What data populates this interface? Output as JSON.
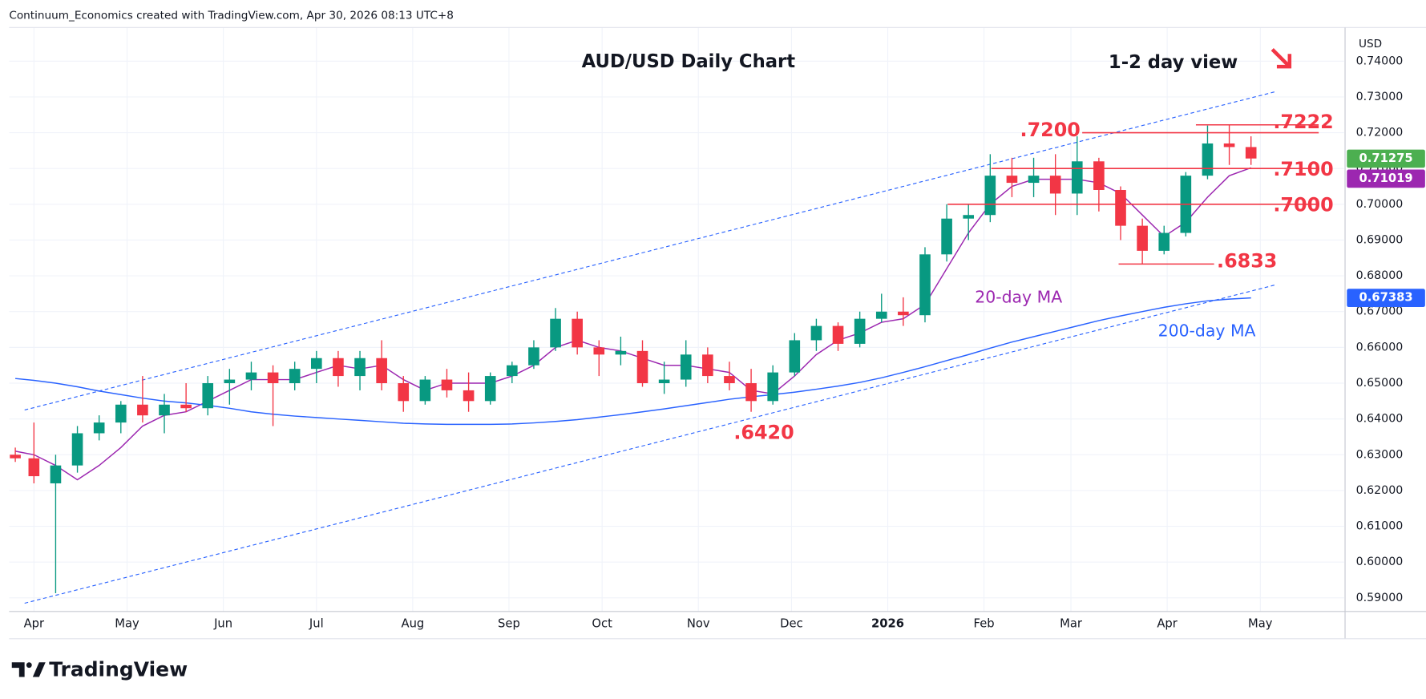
{
  "header": "Continuum_Economics created with TradingView.com, Apr 30, 2026 08:13 UTC+8",
  "footer": "TradingView",
  "chart_data": {
    "type": "candlestick",
    "title": "AUD/USD Daily Chart",
    "subtitle": "1-2 day view",
    "currency": "USD",
    "up_color": "#089981",
    "down_color": "#f23645",
    "grid": true,
    "xlim": [
      -8,
      422
    ],
    "xticks": [
      {
        "value": 0,
        "label": "Apr"
      },
      {
        "value": 30,
        "label": "May"
      },
      {
        "value": 61,
        "label": "Jun"
      },
      {
        "value": 91,
        "label": "Jul"
      },
      {
        "value": 122,
        "label": "Aug"
      },
      {
        "value": 153,
        "label": "Sep"
      },
      {
        "value": 183,
        "label": "Oct"
      },
      {
        "value": 214,
        "label": "Nov"
      },
      {
        "value": 244,
        "label": "Dec"
      },
      {
        "value": 275,
        "label": "2026"
      },
      {
        "value": 306,
        "label": "Feb"
      },
      {
        "value": 334,
        "label": "Mar"
      },
      {
        "value": 365,
        "label": "Apr"
      },
      {
        "value": 395,
        "label": "May"
      }
    ],
    "ylim": [
      0.5862,
      0.7494
    ],
    "yticks": [
      {
        "value": 0.59,
        "label": "0.59000"
      },
      {
        "value": 0.6,
        "label": "0.60000"
      },
      {
        "value": 0.61,
        "label": "0.61000"
      },
      {
        "value": 0.62,
        "label": "0.62000"
      },
      {
        "value": 0.63,
        "label": "0.63000"
      },
      {
        "value": 0.64,
        "label": "0.64000"
      },
      {
        "value": 0.65,
        "label": "0.65000"
      },
      {
        "value": 0.66,
        "label": "0.66000"
      },
      {
        "value": 0.67,
        "label": "0.67000"
      },
      {
        "value": 0.68,
        "label": "0.68000"
      },
      {
        "value": 0.69,
        "label": "0.69000"
      },
      {
        "value": 0.7,
        "label": "0.70000"
      },
      {
        "value": 0.71,
        "label": "0.71000"
      },
      {
        "value": 0.72,
        "label": "0.72000"
      },
      {
        "value": 0.73,
        "label": "0.73000"
      },
      {
        "value": 0.74,
        "label": "0.74000"
      }
    ],
    "x": [
      -6,
      0,
      7,
      14,
      21,
      28,
      35,
      42,
      49,
      56,
      63,
      70,
      77,
      84,
      91,
      98,
      105,
      112,
      119,
      126,
      133,
      140,
      147,
      154,
      161,
      168,
      175,
      182,
      189,
      196,
      203,
      210,
      217,
      224,
      231,
      238,
      245,
      252,
      259,
      266,
      273,
      280,
      287,
      294,
      301,
      308,
      315,
      322,
      329,
      336,
      343,
      350,
      357,
      364,
      371,
      378,
      385,
      392
    ],
    "open": [
      0.63,
      0.629,
      0.622,
      0.627,
      0.636,
      0.639,
      0.644,
      0.641,
      0.644,
      0.643,
      0.65,
      0.651,
      0.653,
      0.65,
      0.654,
      0.657,
      0.652,
      0.657,
      0.65,
      0.645,
      0.651,
      0.648,
      0.645,
      0.652,
      0.655,
      0.66,
      0.668,
      0.66,
      0.658,
      0.659,
      0.65,
      0.651,
      0.658,
      0.652,
      0.65,
      0.645,
      0.653,
      0.662,
      0.666,
      0.661,
      0.668,
      0.67,
      0.669,
      0.686,
      0.696,
      0.697,
      0.708,
      0.706,
      0.708,
      0.703,
      0.712,
      0.704,
      0.694,
      0.687,
      0.692,
      0.708,
      0.717,
      0.716
    ],
    "high": [
      0.632,
      0.639,
      0.63,
      0.638,
      0.641,
      0.645,
      0.652,
      0.647,
      0.65,
      0.652,
      0.654,
      0.656,
      0.655,
      0.656,
      0.659,
      0.659,
      0.659,
      0.662,
      0.652,
      0.652,
      0.654,
      0.653,
      0.653,
      0.656,
      0.662,
      0.671,
      0.67,
      0.662,
      0.663,
      0.662,
      0.656,
      0.662,
      0.66,
      0.656,
      0.654,
      0.655,
      0.664,
      0.668,
      0.667,
      0.67,
      0.675,
      0.674,
      0.688,
      0.7,
      0.7,
      0.714,
      0.713,
      0.713,
      0.714,
      0.719,
      0.713,
      0.705,
      0.696,
      0.694,
      0.709,
      0.722,
      0.7222,
      0.719
    ],
    "low": [
      0.628,
      0.622,
      0.5913,
      0.625,
      0.634,
      0.636,
      0.639,
      0.636,
      0.642,
      0.641,
      0.644,
      0.648,
      0.638,
      0.648,
      0.65,
      0.649,
      0.648,
      0.648,
      0.642,
      0.644,
      0.646,
      0.642,
      0.644,
      0.65,
      0.654,
      0.659,
      0.658,
      0.652,
      0.655,
      0.649,
      0.647,
      0.649,
      0.65,
      0.648,
      0.642,
      0.644,
      0.652,
      0.659,
      0.659,
      0.66,
      0.667,
      0.666,
      0.667,
      0.684,
      0.69,
      0.695,
      0.702,
      0.702,
      0.697,
      0.697,
      0.698,
      0.69,
      0.6833,
      0.686,
      0.691,
      0.707,
      0.711,
      0.711
    ],
    "close": [
      0.629,
      0.624,
      0.627,
      0.636,
      0.639,
      0.644,
      0.641,
      0.644,
      0.643,
      0.65,
      0.651,
      0.653,
      0.65,
      0.654,
      0.657,
      0.652,
      0.657,
      0.65,
      0.645,
      0.651,
      0.648,
      0.645,
      0.652,
      0.655,
      0.66,
      0.668,
      0.66,
      0.658,
      0.659,
      0.65,
      0.651,
      0.658,
      0.652,
      0.65,
      0.645,
      0.653,
      0.662,
      0.666,
      0.661,
      0.668,
      0.67,
      0.669,
      0.686,
      0.696,
      0.697,
      0.708,
      0.706,
      0.708,
      0.703,
      0.712,
      0.704,
      0.694,
      0.687,
      0.692,
      0.708,
      0.717,
      0.716,
      0.7128
    ],
    "lines": [
      {
        "name": "20-day MA",
        "color": "#9c27b0",
        "values": [
          0.631,
          0.63,
          0.627,
          0.623,
          0.627,
          0.632,
          0.638,
          0.641,
          0.642,
          0.645,
          0.648,
          0.651,
          0.651,
          0.651,
          0.653,
          0.655,
          0.654,
          0.655,
          0.651,
          0.648,
          0.65,
          0.65,
          0.65,
          0.652,
          0.655,
          0.66,
          0.662,
          0.66,
          0.659,
          0.657,
          0.655,
          0.655,
          0.654,
          0.653,
          0.648,
          0.647,
          0.652,
          0.658,
          0.662,
          0.664,
          0.667,
          0.668,
          0.672,
          0.682,
          0.692,
          0.7,
          0.705,
          0.707,
          0.707,
          0.707,
          0.706,
          0.703,
          0.697,
          0.691,
          0.695,
          0.702,
          0.708,
          0.7102
        ]
      },
      {
        "name": "200-day MA",
        "color": "#2962ff",
        "values": [
          0.6513,
          0.6508,
          0.65,
          0.649,
          0.6478,
          0.6468,
          0.6458,
          0.645,
          0.6445,
          0.6438,
          0.643,
          0.642,
          0.6413,
          0.6408,
          0.6404,
          0.64,
          0.6396,
          0.6392,
          0.6388,
          0.6386,
          0.6385,
          0.6385,
          0.6385,
          0.6386,
          0.6389,
          0.6393,
          0.6398,
          0.6405,
          0.6412,
          0.642,
          0.6428,
          0.6437,
          0.6446,
          0.6455,
          0.6462,
          0.6468,
          0.6475,
          0.6483,
          0.6492,
          0.6502,
          0.6515,
          0.653,
          0.6546,
          0.6563,
          0.658,
          0.6598,
          0.6615,
          0.663,
          0.6645,
          0.666,
          0.6675,
          0.6688,
          0.67,
          0.6712,
          0.6722,
          0.673,
          0.6735,
          0.67383
        ]
      }
    ],
    "channel": {
      "x": [
        -3,
        400
      ],
      "lower": [
        0.5885,
        0.6775
      ],
      "upper": [
        0.6425,
        0.7315
      ]
    },
    "levels": [
      {
        "value": 0.7222,
        "label": ".7222"
      },
      {
        "value": 0.72,
        "label": ".7200"
      },
      {
        "value": 0.71,
        "label": ".7100"
      },
      {
        "value": 0.7,
        "label": ".7000"
      },
      {
        "value": 0.6833,
        "label": ".6833"
      },
      {
        "value": 0.642,
        "label": ".6420"
      }
    ],
    "price_tags": [
      {
        "value": 0.71275,
        "color": "#4caf50"
      },
      {
        "value": 0.71019,
        "color": "#9c27b0"
      },
      {
        "value": 0.67383,
        "color": "#2962ff"
      }
    ]
  }
}
